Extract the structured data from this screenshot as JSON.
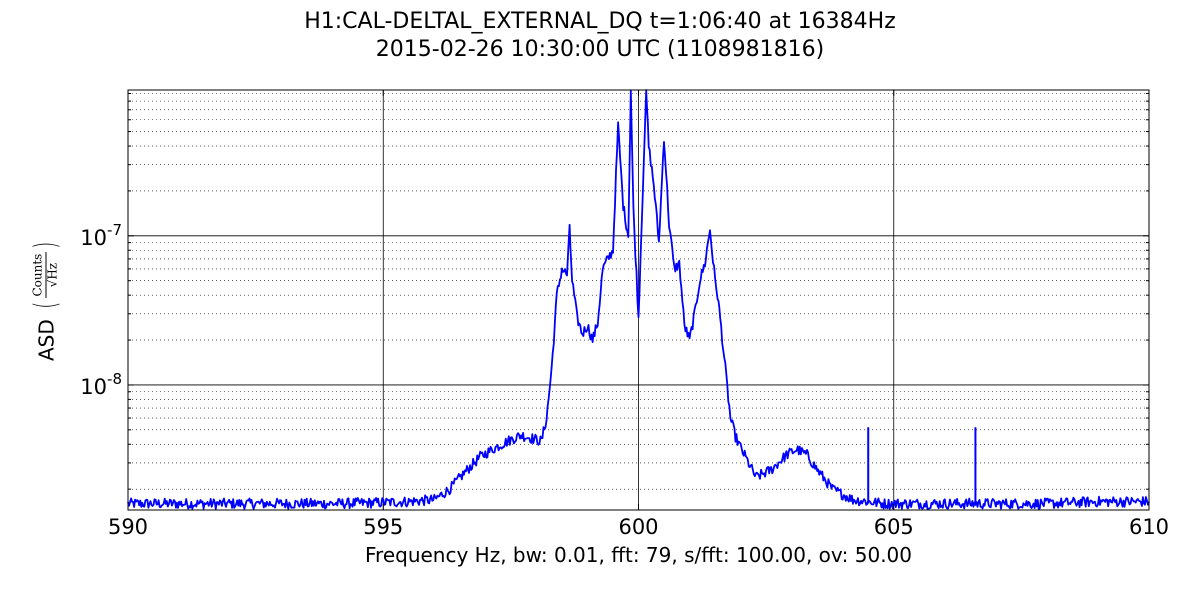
{
  "chart_data": {
    "type": "line",
    "title": "H1:CAL-DELTAL_EXTERNAL_DQ t=1:06:40 at 16384Hz",
    "subtitle": "2015-02-26 10:30:00 UTC (1108981816)",
    "xlabel": "Frequency Hz,  bw: 0.01, fft: 79, s/fft: 100.00, ov: 50.00",
    "ylabel": "ASD",
    "ylabel_unit_numerator": "Counts",
    "ylabel_unit_denominator": "√Hz",
    "xlim": [
      590,
      610
    ],
    "ylim": [
      1.45e-09,
      9.5e-07
    ],
    "yscale": "log",
    "grid": true,
    "x_ticks": [
      "590",
      "595",
      "600",
      "605",
      "610"
    ],
    "y_ticks": [
      {
        "base": "10",
        "exp": "-8",
        "value": 1e-08
      },
      {
        "base": "10",
        "exp": "-7",
        "value": 1e-07
      }
    ],
    "line_color": "#0000ff",
    "series": [
      {
        "x": [
          590.0,
          591.0,
          592.0,
          593.0,
          594.0,
          594.8,
          595.5,
          596.0,
          596.3,
          596.6,
          596.9,
          597.2,
          597.5,
          597.7,
          597.9,
          598.1,
          598.2,
          598.3,
          598.4,
          598.5,
          598.6,
          598.65,
          598.7,
          598.8,
          598.9,
          599.0,
          599.1,
          599.2,
          599.3,
          599.4,
          599.5,
          599.6,
          599.7,
          599.8,
          599.85,
          599.9,
          600.0,
          600.1,
          600.15,
          600.2,
          600.3,
          600.4,
          600.5,
          600.6,
          600.7,
          600.8,
          600.9,
          601.0,
          601.1,
          601.2,
          601.3,
          601.4,
          601.5,
          601.55,
          601.6,
          601.7,
          601.8,
          601.9,
          602.0,
          602.3,
          602.6,
          602.9,
          603.1,
          603.3,
          603.5,
          603.8,
          604.2,
          604.5,
          604.8,
          605.5,
          606.0,
          606.6,
          607.0,
          608.0,
          609.0,
          610.0
        ],
        "y": [
          1.6e-09,
          1.6e-09,
          1.6e-09,
          1.6e-09,
          1.6e-09,
          1.62e-09,
          1.65e-09,
          1.7e-09,
          2e-09,
          2.6e-09,
          3.3e-09,
          3.8e-09,
          4.3e-09,
          4.6e-09,
          4.4e-09,
          4.2e-09,
          6e-09,
          1.3e-08,
          4e-08,
          6e-08,
          5.5e-08,
          1.1e-07,
          5e-08,
          2.8e-08,
          2.2e-08,
          2.5e-08,
          2e-08,
          2.6e-08,
          6e-08,
          7e-08,
          8e-08,
          5.5e-07,
          1.6e-07,
          1e-07,
          9.5e-07,
          1.5e-07,
          2.8e-08,
          3e-07,
          9.5e-07,
          4e-07,
          2.2e-07,
          9e-08,
          4.6e-07,
          1.2e-07,
          6e-08,
          6.5e-08,
          2.5e-08,
          2e-08,
          3e-08,
          5e-08,
          6.5e-08,
          1.1e-07,
          5e-08,
          4e-08,
          2.8e-08,
          1.3e-08,
          6e-09,
          4.5e-09,
          3.8e-09,
          2.4e-09,
          2.7e-09,
          3.4e-09,
          3.7e-09,
          3.4e-09,
          2.7e-09,
          2e-09,
          1.7e-09,
          1.65e-09,
          1.6e-09,
          1.6e-09,
          1.6e-09,
          1.6e-09,
          1.6e-09,
          1.6e-09,
          1.65e-09,
          1.65e-09
        ]
      }
    ],
    "spikes": [
      {
        "x": 604.5,
        "y": 5.2e-09
      },
      {
        "x": 606.6,
        "y": 5.2e-09
      }
    ]
  }
}
